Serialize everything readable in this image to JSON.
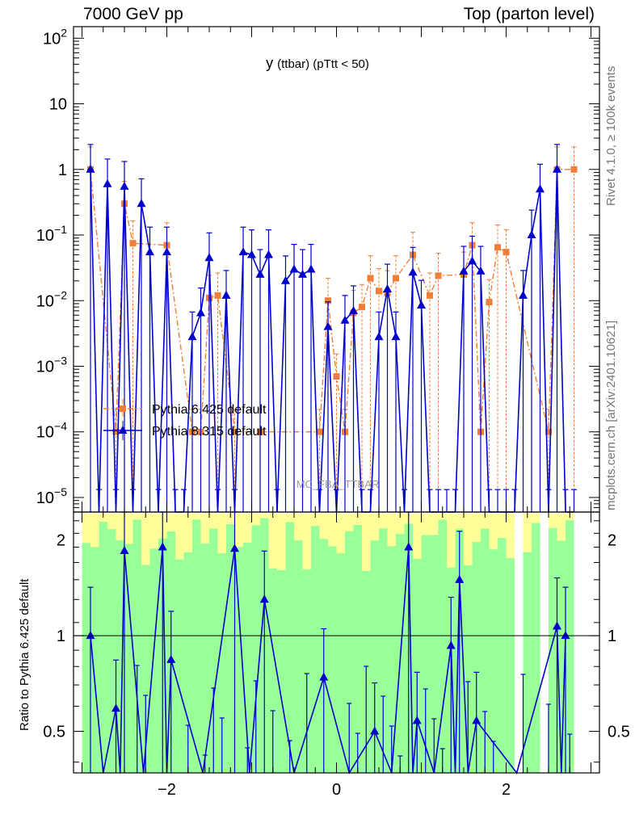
{
  "header": {
    "left": "7000 GeV pp",
    "right": "Top (parton level)"
  },
  "side": {
    "rivet": "Rivet 4.1.0, ≥ 100k events",
    "mcplots": "mcplots.cern.ch [arXiv:2401.10621]"
  },
  "colors": {
    "pythia6": "#f07e36",
    "pythia8": "#0000cc",
    "band_green": "#99ff99",
    "band_yellow": "#ffff99"
  },
  "chart_data": [
    {
      "type": "line",
      "title": "y",
      "title_suffix": "(ttbar)  (pTtt < 50)",
      "watermark": "MC_FBA_TTBAR",
      "xlabel": "",
      "ylabel": "",
      "yscale": "log",
      "xlim": [
        -3.1,
        3.1
      ],
      "ylim": [
        6e-06,
        150
      ],
      "legend_position": "middle-left",
      "y_tick_labels": [
        {
          "base": "10",
          "exp": "2",
          "value": 100
        },
        {
          "base": "10",
          "exp": "",
          "value": 10
        },
        {
          "base": "1",
          "exp": "",
          "value": 1
        },
        {
          "base": "10",
          "exp": "−1",
          "value": 0.1
        },
        {
          "base": "10",
          "exp": "−2",
          "value": 0.01
        },
        {
          "base": "10",
          "exp": "−3",
          "value": 0.001
        },
        {
          "base": "10",
          "exp": "−4",
          "value": 0.0001
        },
        {
          "base": "10",
          "exp": "−5",
          "value": 1e-05
        }
      ],
      "series": [
        {
          "name": "Pythia 6.425 default",
          "marker": "square",
          "style": "dash-dot",
          "x": [
            -2.9,
            -2.6,
            -2.5,
            -2.4,
            -2.0,
            -1.7,
            -1.6,
            -1.5,
            -1.4,
            -1.2,
            -0.9,
            -0.2,
            -0.1,
            0.0,
            0.1,
            0.2,
            0.3,
            0.4,
            0.5,
            0.6,
            0.7,
            0.9,
            1.1,
            1.2,
            1.5,
            1.6,
            1.7,
            1.8,
            1.9,
            2.0,
            2.5,
            2.6,
            2.8
          ],
          "values": [
            1.0,
            0.0001,
            0.3,
            0.075,
            0.07,
            0.0001,
            0.0001,
            0.011,
            0.012,
            0.0001,
            0.0001,
            0.0001,
            0.01,
            0.0007,
            0.0001,
            0.0065,
            0.008,
            0.022,
            0.014,
            0.013,
            0.022,
            0.05,
            0.012,
            0.024,
            0.025,
            0.07,
            0.0001,
            0.0095,
            0.065,
            0.055,
            0.0001,
            1.0,
            1.0
          ]
        },
        {
          "name": "Pythia 8.315 default",
          "marker": "triangle",
          "style": "solid",
          "x": [
            -2.9,
            -2.8,
            -2.7,
            -2.6,
            -2.5,
            -2.4,
            -2.3,
            -2.2,
            -2.1,
            -2.0,
            -1.9,
            -1.8,
            -1.7,
            -1.6,
            -1.5,
            -1.4,
            -1.3,
            -1.2,
            -1.1,
            -1.0,
            -0.9,
            -0.8,
            -0.7,
            -0.6,
            -0.5,
            -0.4,
            -0.3,
            -0.2,
            -0.1,
            0.0,
            0.1,
            0.2,
            0.3,
            0.4,
            0.5,
            0.6,
            0.7,
            0.8,
            0.9,
            1.0,
            1.1,
            1.2,
            1.3,
            1.4,
            1.5,
            1.6,
            1.7,
            1.8,
            1.9,
            2.0,
            2.1,
            2.2,
            2.3,
            2.4,
            2.5,
            2.6,
            2.7,
            2.8
          ],
          "values": [
            1.0,
            5.5e-06,
            0.6,
            5.5e-06,
            0.55,
            5.5e-06,
            0.3,
            0.055,
            5.5e-06,
            0.055,
            5.5e-06,
            5.5e-06,
            0.0028,
            0.0065,
            0.045,
            5.5e-06,
            0.012,
            5.5e-06,
            0.055,
            0.05,
            0.025,
            0.05,
            5.5e-06,
            0.02,
            0.03,
            0.025,
            0.03,
            5.5e-06,
            0.004,
            5.5e-06,
            0.005,
            0.007,
            5.5e-06,
            5.5e-06,
            0.0028,
            0.015,
            0.0028,
            5.5e-06,
            0.027,
            0.0085,
            5.5e-06,
            5.5e-06,
            5.5e-06,
            5.5e-06,
            0.028,
            0.04,
            0.028,
            5.5e-06,
            5.5e-06,
            5.5e-06,
            5.5e-06,
            0.012,
            0.1,
            0.5,
            5.5e-06,
            1.0,
            5.5e-06,
            5.5e-06
          ]
        }
      ]
    },
    {
      "type": "line",
      "title": "",
      "xlabel": "",
      "ylabel": "Ratio to Pythia 6.425 default",
      "yscale": "log",
      "xlim": [
        -3.1,
        3.1
      ],
      "ylim": [
        0.37,
        2.45
      ],
      "reference_line": 1,
      "x_tick_labels": [
        {
          "label": "−2",
          "value": -2
        },
        {
          "label": "0",
          "value": 0
        },
        {
          "label": "2",
          "value": 2
        }
      ],
      "y_tick_labels": [
        {
          "label": "0.5",
          "value": 0.5
        },
        {
          "label": "1",
          "value": 1
        },
        {
          "label": "2",
          "value": 2
        }
      ],
      "series": [
        {
          "name": "Pythia 8.315 default / Pythia 6.425 default",
          "marker": "triangle",
          "x": [
            -2.9,
            -2.6,
            -2.5,
            -2.05,
            -1.95,
            -1.2,
            -0.85,
            -0.15,
            0.45,
            0.85,
            0.95,
            1.35,
            1.45,
            1.65,
            2.6,
            2.7
          ],
          "values": [
            1.0,
            0.59,
            1.85,
            1.9,
            0.84,
            1.88,
            1.3,
            0.74,
            0.5,
            1.9,
            0.54,
            0.93,
            1.5,
            0.54,
            1.07,
            1.0
          ]
        }
      ]
    }
  ]
}
